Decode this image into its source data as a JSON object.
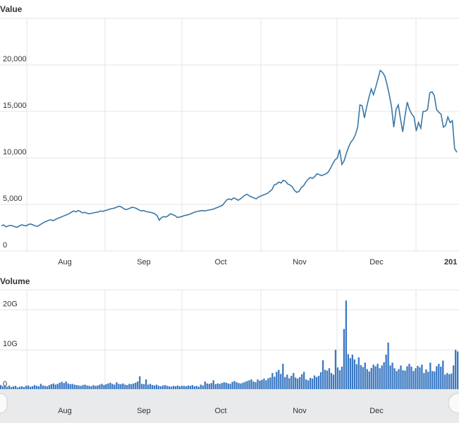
{
  "chart_data": [
    {
      "type": "line",
      "title": "Value",
      "ylim": [
        0,
        25000
      ],
      "y_ticks": [
        "0",
        "5,000",
        "10,000",
        "15,000",
        "20,000"
      ],
      "x_ticks": [
        "Aug",
        "Sep",
        "Oct",
        "Nov",
        "Dec"
      ],
      "x_tick_partial": "201",
      "grid": true,
      "series": [
        {
          "values": [
            2700,
            2800,
            2600,
            2700,
            2750,
            2700,
            2600,
            2550,
            2700,
            2800,
            2750,
            2700,
            2850,
            2900,
            2800,
            2700,
            2650,
            2800,
            2950,
            3100,
            3200,
            3300,
            3350,
            3250,
            3400,
            3500,
            3600,
            3700,
            3800,
            3900,
            4000,
            4150,
            4300,
            4200,
            4350,
            4250,
            4100,
            4150,
            4050,
            4000,
            4050,
            4100,
            4150,
            4200,
            4300,
            4250,
            4350,
            4400,
            4500,
            4550,
            4600,
            4700,
            4800,
            4750,
            4600,
            4450,
            4500,
            4600,
            4700,
            4650,
            4550,
            4400,
            4300,
            4350,
            4250,
            4200,
            4150,
            4100,
            4000,
            3800,
            3300,
            3600,
            3700,
            3650,
            3800,
            4000,
            3900,
            3800,
            3600,
            3650,
            3700,
            3800,
            3850,
            3900,
            4000,
            4100,
            4200,
            4250,
            4300,
            4350,
            4300,
            4350,
            4400,
            4450,
            4500,
            4600,
            4700,
            4800,
            4900,
            5200,
            5500,
            5600,
            5500,
            5700,
            5600,
            5450,
            5600,
            5800,
            6000,
            6100,
            5900,
            5800,
            5700,
            5600,
            5800,
            5900,
            6000,
            6100,
            6200,
            6400,
            6600,
            7100,
            7200,
            7400,
            7300,
            7600,
            7500,
            7200,
            7100,
            6900,
            6500,
            6300,
            6400,
            6800,
            7000,
            7400,
            7700,
            7900,
            7800,
            8000,
            8300,
            8200,
            8100,
            8200,
            8300,
            8500,
            8900,
            9400,
            9800,
            10000,
            10900,
            9300,
            9700,
            10500,
            11200,
            11700,
            12000,
            12500,
            13300,
            15700,
            15600,
            14300,
            15500,
            16500,
            17400,
            16800,
            17600,
            18500,
            19400,
            19200,
            18800,
            17900,
            16800,
            15500,
            13300,
            15200,
            15700,
            14200,
            12800,
            14500,
            16000,
            15200,
            14700,
            14400,
            12900,
            13800,
            13200,
            15000,
            15000,
            15200,
            17000,
            17100,
            16700,
            15200,
            14900,
            14700,
            13300,
            13500,
            14400,
            13800,
            14000,
            11000,
            10600
          ]
        }
      ]
    },
    {
      "type": "bar",
      "title": "Volume",
      "ylim": [
        0,
        25
      ],
      "y_unit": "G",
      "y_ticks": [
        "0",
        "10G",
        "20G"
      ],
      "x_ticks": [
        "Aug",
        "Sep",
        "Oct",
        "Nov",
        "Dec"
      ],
      "grid": true,
      "series": [
        {
          "values": [
            1.2,
            0.9,
            1.0,
            0.8,
            1.1,
            0.7,
            0.9,
            1.0,
            0.6,
            0.8,
            0.9,
            0.7,
            1.0,
            1.1,
            0.8,
            0.9,
            1.2,
            1.0,
            0.9,
            1.5,
            1.1,
            1.0,
            0.9,
            1.2,
            1.4,
            1.6,
            1.3,
            1.5,
            1.8,
            2.0,
            1.7,
            2.1,
            1.6,
            1.4,
            1.5,
            1.3,
            1.2,
            1.1,
            1.0,
            1.2,
            1.3,
            1.1,
            1.0,
            0.9,
            1.2,
            1.0,
            1.1,
            1.3,
            1.5,
            1.2,
            1.4,
            1.6,
            1.8,
            1.5,
            1.3,
            1.9,
            1.5,
            1.4,
            1.6,
            1.3,
            1.2,
            1.5,
            1.4,
            1.6,
            1.8,
            2.1,
            3.4,
            1.5,
            1.4,
            2.6,
            1.3,
            1.5,
            1.2,
            1.1,
            1.3,
            1.0,
            0.9,
            1.1,
            1.2,
            1.0,
            0.9,
            0.8,
            1.0,
            0.9,
            1.1,
            0.9,
            1.0,
            1.0,
            0.9,
            1.1,
            1.0,
            1.2,
            0.9,
            1.0,
            0.8,
            1.3,
            1.1,
            2.1,
            1.6,
            1.5,
            1.7,
            2.4,
            1.4,
            1.6,
            1.5,
            1.7,
            1.9,
            1.8,
            1.6,
            1.5,
            2.0,
            2.2,
            1.9,
            1.7,
            1.6,
            1.8,
            2.0,
            2.2,
            2.4,
            2.6,
            2.1,
            1.9,
            2.6,
            2.3,
            2.5,
            2.8,
            2.4,
            2.9,
            3.1,
            4.2,
            3.3,
            4.5,
            5.0,
            4.0,
            6.5,
            3.2,
            3.8,
            2.9,
            3.5,
            4.2,
            3.1,
            2.8,
            3.2,
            3.9,
            4.5,
            2.6,
            2.4,
            3.0,
            2.8,
            3.6,
            3.2,
            3.5,
            4.4,
            7.4,
            5.0,
            4.8,
            5.4,
            4.2,
            3.8,
            10.0,
            5.6,
            4.9,
            5.8,
            15.2,
            22.3,
            8.9,
            7.9,
            8.8,
            7.6,
            6.4,
            8.1,
            6.2,
            5.7,
            6.8,
            5.2,
            4.6,
            5.5,
            6.3,
            5.9,
            6.5,
            5.4,
            6.1,
            6.9,
            8.8,
            11.8,
            6.1,
            6.8,
            5.4,
            4.7,
            5.2,
            6.1,
            4.9,
            4.8,
            5.9,
            6.5,
            5.8,
            4.7,
            5.4,
            6.0,
            5.6,
            6.3,
            4.2,
            5.1,
            4.5,
            6.8,
            4.7,
            4.6,
            5.9,
            6.5,
            5.8,
            7.3,
            3.8,
            4.2,
            3.9,
            4.1,
            6.1,
            10.0,
            9.6
          ]
        }
      ]
    }
  ]
}
